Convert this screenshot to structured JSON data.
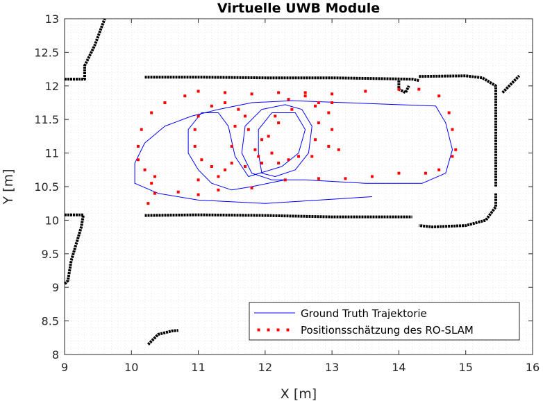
{
  "chart_data": {
    "type": "scatter",
    "title": "Virtuelle UWB Module",
    "xlabel": "X [m]",
    "ylabel": "Y [m]",
    "xlim": [
      9,
      16
    ],
    "ylim": [
      8,
      13
    ],
    "xticks": [
      9,
      10,
      11,
      12,
      13,
      14,
      15,
      16
    ],
    "yticks": [
      8,
      8.5,
      9,
      9.5,
      10,
      10.5,
      11,
      11.5,
      12,
      12.5,
      13
    ],
    "xtick_labels": [
      "9",
      "10",
      "11",
      "12",
      "13",
      "14",
      "15",
      "16"
    ],
    "ytick_labels": [
      "8",
      "8.5",
      "9",
      "9.5",
      "10",
      "10.5",
      "11",
      "11.5",
      "12",
      "12.5",
      "13"
    ],
    "grid": "minor-dotted",
    "legend_position": "bottom-right",
    "series": [
      {
        "name": "Ground Truth Trajektorie",
        "kind": "line",
        "color": "#0000ff",
        "points": [
          [
            13.6,
            10.35
          ],
          [
            12.0,
            10.25
          ],
          [
            11.0,
            10.3
          ],
          [
            10.4,
            10.4
          ],
          [
            10.05,
            10.55
          ],
          [
            10.05,
            10.85
          ],
          [
            10.2,
            11.15
          ],
          [
            10.5,
            11.4
          ],
          [
            10.9,
            11.55
          ],
          [
            11.3,
            11.65
          ],
          [
            11.8,
            11.75
          ],
          [
            12.4,
            11.78
          ],
          [
            13.2,
            11.75
          ],
          [
            14.0,
            11.72
          ],
          [
            14.55,
            11.7
          ],
          [
            14.7,
            11.45
          ],
          [
            14.8,
            11.05
          ],
          [
            14.7,
            10.7
          ],
          [
            14.35,
            10.55
          ],
          [
            13.5,
            10.55
          ],
          [
            12.6,
            10.6
          ],
          [
            12.1,
            10.6
          ],
          [
            11.8,
            10.7
          ],
          [
            11.65,
            11.0
          ],
          [
            11.7,
            11.4
          ],
          [
            11.95,
            11.65
          ],
          [
            12.3,
            11.72
          ],
          [
            12.55,
            11.65
          ],
          [
            12.7,
            11.4
          ],
          [
            12.65,
            11.0
          ],
          [
            12.45,
            10.75
          ],
          [
            12.15,
            10.65
          ],
          [
            11.95,
            10.7
          ],
          [
            11.9,
            11.0
          ],
          [
            11.9,
            11.35
          ],
          [
            12.1,
            11.6
          ],
          [
            12.45,
            11.6
          ],
          [
            12.6,
            11.35
          ],
          [
            12.5,
            11.0
          ],
          [
            12.25,
            10.8
          ],
          [
            11.75,
            10.65
          ],
          [
            11.55,
            10.95
          ],
          [
            11.45,
            11.4
          ],
          [
            11.3,
            11.6
          ],
          [
            11.05,
            11.6
          ],
          [
            10.85,
            11.35
          ],
          [
            10.85,
            11.0
          ],
          [
            11.0,
            10.75
          ],
          [
            11.2,
            10.55
          ],
          [
            11.5,
            10.45
          ],
          [
            11.8,
            10.5
          ],
          [
            12.3,
            10.6
          ]
        ]
      },
      {
        "name": "Positionsschätzung des RO-SLAM",
        "kind": "scatter",
        "color": "#ff0000",
        "points": [
          [
            10.25,
            10.25
          ],
          [
            10.35,
            10.4
          ],
          [
            10.7,
            10.42
          ],
          [
            11.0,
            10.38
          ],
          [
            11.3,
            10.45
          ],
          [
            11.8,
            10.48
          ],
          [
            12.3,
            10.6
          ],
          [
            12.8,
            10.62
          ],
          [
            13.2,
            10.62
          ],
          [
            13.6,
            10.65
          ],
          [
            14.0,
            10.7
          ],
          [
            14.4,
            10.7
          ],
          [
            14.6,
            10.75
          ],
          [
            14.8,
            10.95
          ],
          [
            14.85,
            11.05
          ],
          [
            14.8,
            11.35
          ],
          [
            14.75,
            11.6
          ],
          [
            14.6,
            11.85
          ],
          [
            14.3,
            11.95
          ],
          [
            14.0,
            11.95
          ],
          [
            13.5,
            11.92
          ],
          [
            13.0,
            11.88
          ],
          [
            12.6,
            11.9
          ],
          [
            12.2,
            11.9
          ],
          [
            11.8,
            11.88
          ],
          [
            11.4,
            11.9
          ],
          [
            11.0,
            11.92
          ],
          [
            10.8,
            11.85
          ],
          [
            10.5,
            11.75
          ],
          [
            10.3,
            11.6
          ],
          [
            10.15,
            11.35
          ],
          [
            10.1,
            11.1
          ],
          [
            10.1,
            10.9
          ],
          [
            10.2,
            10.75
          ],
          [
            10.35,
            10.65
          ],
          [
            10.3,
            10.55
          ],
          [
            11.0,
            10.6
          ],
          [
            11.3,
            10.65
          ],
          [
            11.5,
            10.85
          ],
          [
            11.5,
            11.1
          ],
          [
            11.55,
            11.4
          ],
          [
            11.6,
            11.65
          ],
          [
            11.4,
            11.75
          ],
          [
            11.2,
            11.7
          ],
          [
            11.0,
            11.55
          ],
          [
            10.95,
            11.35
          ],
          [
            10.95,
            11.1
          ],
          [
            11.05,
            10.9
          ],
          [
            11.2,
            10.8
          ],
          [
            11.4,
            10.75
          ],
          [
            11.7,
            10.8
          ],
          [
            11.95,
            10.85
          ],
          [
            12.2,
            10.85
          ],
          [
            12.5,
            10.95
          ],
          [
            12.75,
            11.2
          ],
          [
            12.8,
            11.45
          ],
          [
            12.75,
            11.7
          ],
          [
            12.6,
            11.85
          ],
          [
            12.35,
            11.8
          ],
          [
            12.15,
            11.55
          ],
          [
            12.05,
            11.25
          ],
          [
            12.1,
            11.0
          ],
          [
            12.35,
            10.9
          ],
          [
            12.7,
            10.95
          ],
          [
            12.95,
            11.1
          ],
          [
            13.0,
            11.35
          ],
          [
            12.95,
            11.6
          ],
          [
            12.8,
            11.75
          ],
          [
            12.4,
            11.65
          ],
          [
            12.2,
            11.45
          ],
          [
            11.95,
            11.2
          ],
          [
            11.85,
            11.05
          ],
          [
            11.75,
            11.35
          ],
          [
            11.7,
            11.55
          ],
          [
            13.1,
            11.05
          ],
          [
            13.0,
            11.75
          ],
          [
            11.9,
            10.95
          ]
        ]
      },
      {
        "name": "",
        "kind": "map",
        "color": "#000000",
        "segments": [
          [
            [
              10.2,
              12.13
            ],
            [
              11.0,
              12.13
            ],
            [
              12.0,
              12.12
            ],
            [
              13.0,
              12.12
            ],
            [
              14.2,
              12.1
            ],
            [
              14.3,
              12.08
            ]
          ],
          [
            [
              14.3,
              12.14
            ],
            [
              15.0,
              12.15
            ],
            [
              15.25,
              12.12
            ],
            [
              15.45,
              12.0
            ],
            [
              15.45,
              11.0
            ],
            [
              15.45,
              10.5
            ]
          ],
          [
            [
              15.45,
              10.4
            ],
            [
              15.45,
              10.2
            ],
            [
              15.3,
              10.0
            ],
            [
              15.0,
              9.92
            ],
            [
              14.5,
              9.9
            ],
            [
              14.3,
              9.92
            ]
          ],
          [
            [
              10.2,
              10.07
            ],
            [
              11.0,
              10.08
            ],
            [
              12.0,
              10.07
            ],
            [
              13.0,
              10.05
            ],
            [
              14.2,
              10.05
            ]
          ],
          [
            [
              9.0,
              12.1
            ],
            [
              9.3,
              12.1
            ],
            [
              9.3,
              12.3
            ],
            [
              9.45,
              12.6
            ],
            [
              9.6,
              13.0
            ]
          ],
          [
            [
              9.0,
              10.08
            ],
            [
              9.28,
              10.08
            ],
            [
              9.25,
              9.9
            ],
            [
              9.1,
              9.4
            ],
            [
              9.05,
              9.1
            ],
            [
              9.0,
              9.05
            ]
          ],
          [
            [
              10.25,
              8.15
            ],
            [
              10.4,
              8.3
            ],
            [
              10.6,
              8.35
            ],
            [
              10.7,
              8.36
            ]
          ],
          [
            [
              15.55,
              11.9
            ],
            [
              15.7,
              12.05
            ],
            [
              15.8,
              12.15
            ]
          ],
          [
            [
              14.0,
              12.08
            ],
            [
              14.0,
              11.95
            ],
            [
              14.1,
              11.9
            ],
            [
              14.15,
              12.0
            ]
          ]
        ]
      }
    ]
  }
}
